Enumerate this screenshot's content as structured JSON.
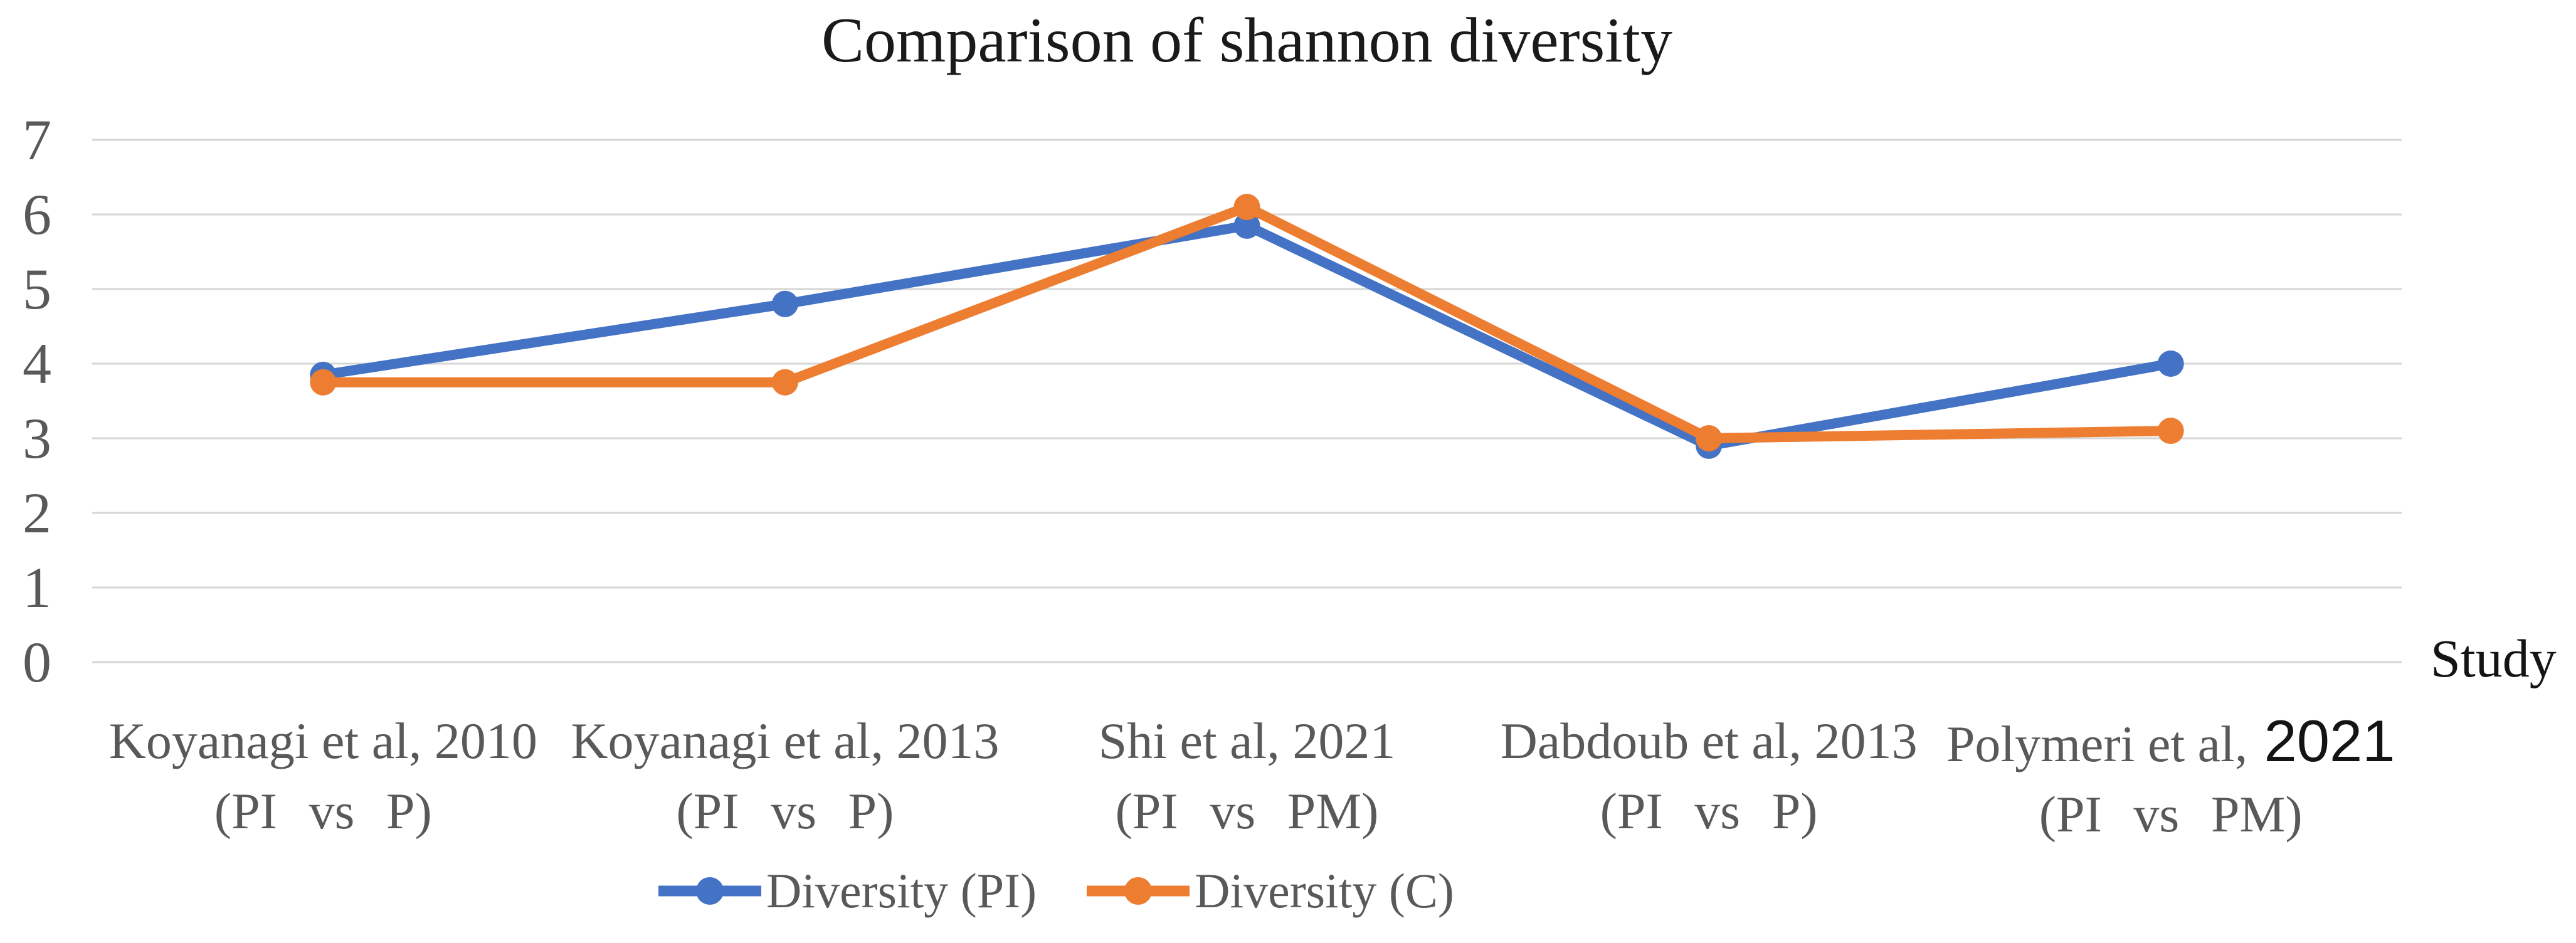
{
  "colors": {
    "grid": "#D6D6D6",
    "tick_text": "#595959",
    "category_text": "#595959",
    "title_text": "#1a1a1a",
    "axis_title_text": "#141414",
    "highlight_year_text": "#141414",
    "series_blue": "#4472C4",
    "series_orange": "#ED7D31"
  },
  "chart_data": {
    "type": "line",
    "title": "Comparison of shannon diversity",
    "xlabel": "Study",
    "ylabel": "",
    "ylim": [
      0,
      7
    ],
    "yticks": [
      0,
      1,
      2,
      3,
      4,
      5,
      6,
      7
    ],
    "grid": "horizontal",
    "legend_position": "bottom-center",
    "categories": [
      "Koyanagi et al, 2010 (PI vs P)",
      "Koyanagi et al, 2013 (PI vs P)",
      "Shi et al, 2021 (PI vs PM)",
      "Dabdoub et al, 2013 (PI vs P)",
      "Polymeri et al, 2021 (PI vs PM)"
    ],
    "category_labels": [
      {
        "line1": "Koyanagi et al, 2010",
        "line1_alt": "",
        "line2": "(PI vs P)"
      },
      {
        "line1": "Koyanagi et al, 2013",
        "line1_alt": "",
        "line2": "(PI vs P)"
      },
      {
        "line1": "Shi et al, 2021",
        "line1_alt": "",
        "line2": "(PI vs PM)"
      },
      {
        "line1": "Dabdoub et al, 2013",
        "line1_alt": "",
        "line2": "(PI vs P)"
      },
      {
        "line1": "Polymeri et al,",
        "line1_alt": "2021",
        "line2": "(PI vs PM)"
      }
    ],
    "series": [
      {
        "name": "Diversity (PI)",
        "color": "#4472C4",
        "values": [
          3.85,
          4.8,
          5.85,
          2.9,
          4.0
        ]
      },
      {
        "name": "Diversity (C)",
        "color": "#ED7D31",
        "values": [
          3.75,
          3.75,
          6.1,
          3.0,
          3.1
        ]
      }
    ]
  }
}
